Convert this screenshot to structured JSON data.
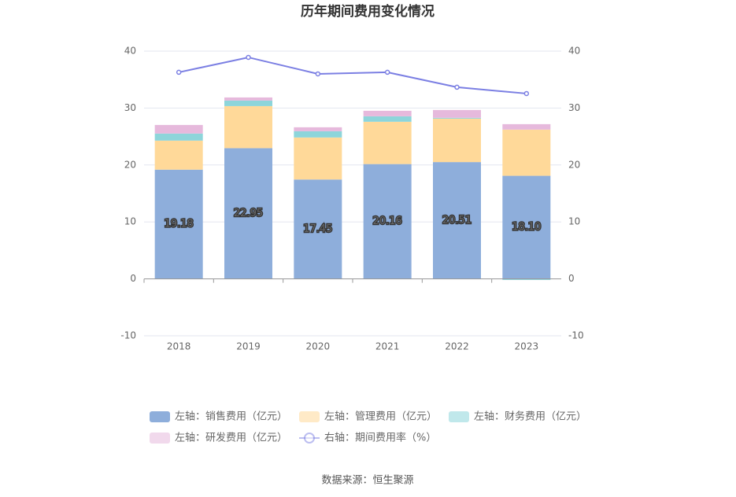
{
  "chart_data": {
    "type": "bar",
    "title": "历年期间费用变化情况",
    "categories": [
      "2018",
      "2019",
      "2020",
      "2021",
      "2022",
      "2023"
    ],
    "series": [
      {
        "name": "左轴：销售费用（亿元）",
        "color": "#8eaedb",
        "values": [
          19.18,
          22.95,
          17.45,
          20.16,
          20.51,
          18.1
        ],
        "value_labels": [
          "19.18",
          "22.95",
          "17.45",
          "20.16",
          "20.51",
          "18.10"
        ]
      },
      {
        "name": "左轴：管理费用（亿元）",
        "color": "#ffd999",
        "values": [
          5.1,
          7.39,
          7.38,
          7.43,
          7.63,
          8.11
        ]
      },
      {
        "name": "左轴：财务费用（亿元）",
        "color": "#8dd5da",
        "values": [
          1.24,
          0.97,
          1.1,
          0.96,
          0.14,
          -0.2
        ]
      },
      {
        "name": "左轴：研发费用（亿元）",
        "color": "#e6b9dc",
        "values": [
          1.51,
          0.55,
          0.69,
          0.97,
          1.38,
          0.96
        ]
      },
      {
        "name": "右轴：期间费用率（%）",
        "type": "line",
        "axis": "y2",
        "color": "#7b7fe3",
        "values": [
          36.28,
          38.9,
          36.0,
          36.28,
          33.66,
          32.55
        ]
      }
    ],
    "ylim": [
      -10,
      40
    ],
    "yticks": [
      -10,
      0,
      10,
      20,
      30,
      40
    ],
    "y2lim": [
      -10,
      40
    ],
    "y2ticks": [
      -10,
      0,
      10,
      20,
      30,
      40
    ],
    "grid": true,
    "source": "数据来源：恒生聚源"
  }
}
